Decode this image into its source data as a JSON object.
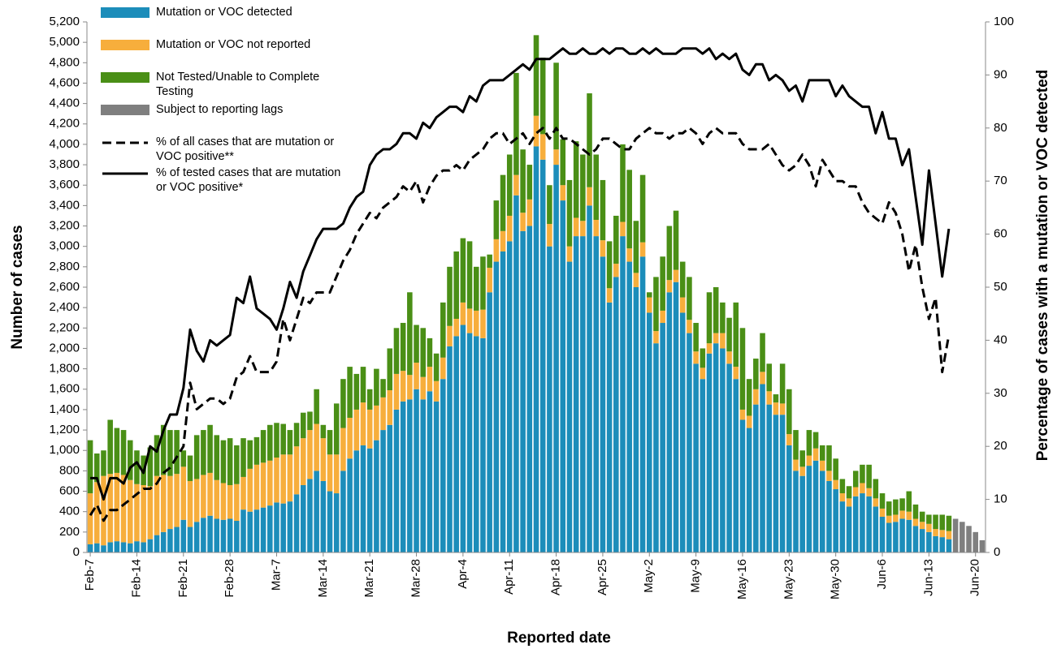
{
  "chart_data": {
    "type": "bar",
    "x_label": "Reported date",
    "y_label": "Number of cases",
    "y2_label": "Percentage of cases with a mutation or VOC detected",
    "stacked": true,
    "legend": "upper left",
    "categories": [
      "Feb-7",
      null,
      null,
      null,
      null,
      null,
      null,
      "Feb-14",
      null,
      null,
      null,
      null,
      null,
      null,
      "Feb-21",
      null,
      null,
      null,
      null,
      null,
      null,
      "Feb-28",
      null,
      null,
      null,
      null,
      null,
      null,
      "Mar-7",
      null,
      null,
      null,
      null,
      null,
      null,
      "Mar-14",
      null,
      null,
      null,
      null,
      null,
      null,
      "Mar-21",
      null,
      null,
      null,
      null,
      null,
      null,
      "Mar-28",
      null,
      null,
      null,
      null,
      null,
      null,
      "Apr-4",
      null,
      null,
      null,
      null,
      null,
      null,
      "Apr-11",
      null,
      null,
      null,
      null,
      null,
      null,
      "Apr-18",
      null,
      null,
      null,
      null,
      null,
      null,
      "Apr-25",
      null,
      null,
      null,
      null,
      null,
      null,
      "May-2",
      null,
      null,
      null,
      null,
      null,
      null,
      "May-9",
      null,
      null,
      null,
      null,
      null,
      null,
      "May-16",
      null,
      null,
      null,
      null,
      null,
      null,
      "May-23",
      null,
      null,
      null,
      null,
      null,
      null,
      "May-30",
      null,
      null,
      null,
      null,
      null,
      null,
      "Jun-6",
      null,
      null,
      null,
      null,
      null,
      null,
      "Jun-13",
      null,
      null,
      null,
      null,
      null,
      null,
      "Jun-20",
      null
    ],
    "series": [
      {
        "name": "Mutation or VOC detected",
        "type": "bar",
        "color": "#1c8dba",
        "values": [
          80,
          90,
          70,
          100,
          110,
          100,
          90,
          110,
          100,
          130,
          170,
          200,
          230,
          250,
          320,
          250,
          300,
          340,
          360,
          330,
          320,
          330,
          310,
          420,
          400,
          420,
          440,
          460,
          490,
          480,
          500,
          570,
          660,
          720,
          800,
          700,
          600,
          580,
          800,
          920,
          1000,
          1050,
          1020,
          1100,
          1200,
          1250,
          1400,
          1480,
          1500,
          1600,
          1500,
          1580,
          1480,
          1700,
          2020,
          2120,
          2230,
          2150,
          2120,
          2100,
          2550,
          2850,
          2950,
          3050,
          3500,
          3150,
          3200,
          3980,
          3850,
          3000,
          3800,
          3450,
          2850,
          3100,
          3100,
          3400,
          3100,
          2900,
          2450,
          2700,
          3100,
          2850,
          2600,
          2900,
          2350,
          2050,
          2250,
          2550,
          2650,
          2350,
          2150,
          1850,
          1700,
          1950,
          2050,
          2000,
          1850,
          1700,
          1300,
          1220,
          1450,
          1650,
          1450,
          1350,
          1350,
          1050,
          800,
          750,
          850,
          900,
          800,
          700,
          620,
          500,
          450,
          550,
          580,
          550,
          450,
          350,
          290,
          300,
          330,
          320,
          260,
          230,
          200,
          160,
          150,
          130,
          null,
          null,
          null,
          null,
          null
        ]
      },
      {
        "name": "Mutation or VOC not reported",
        "type": "bar",
        "color": "#f7ae3c",
        "values": [
          500,
          600,
          680,
          670,
          670,
          660,
          620,
          560,
          560,
          520,
          580,
          560,
          520,
          520,
          520,
          450,
          420,
          420,
          420,
          380,
          360,
          330,
          360,
          320,
          420,
          440,
          440,
          440,
          440,
          480,
          460,
          470,
          460,
          480,
          460,
          420,
          360,
          380,
          420,
          400,
          400,
          420,
          380,
          340,
          320,
          340,
          350,
          300,
          240,
          260,
          220,
          240,
          200,
          210,
          200,
          170,
          220,
          240,
          250,
          280,
          240,
          220,
          200,
          250,
          200,
          180,
          260,
          300,
          250,
          220,
          150,
          150,
          150,
          180,
          150,
          180,
          160,
          160,
          140,
          130,
          140,
          130,
          140,
          140,
          150,
          120,
          120,
          120,
          120,
          150,
          130,
          120,
          110,
          100,
          100,
          150,
          120,
          120,
          100,
          120,
          150,
          120,
          130,
          120,
          110,
          110,
          110,
          90,
          100,
          120,
          100,
          100,
          90,
          80,
          80,
          90,
          100,
          80,
          80,
          80,
          70,
          70,
          80,
          80,
          70,
          70,
          80,
          70,
          70,
          80,
          null,
          null,
          null,
          null,
          null
        ]
      },
      {
        "name": "Not Tested/Unable to Complete Testing",
        "type": "bar",
        "color": "#4a8f16",
        "values": [
          520,
          280,
          250,
          530,
          440,
          440,
          390,
          330,
          290,
          380,
          400,
          490,
          450,
          430,
          160,
          250,
          430,
          440,
          470,
          440,
          420,
          460,
          380,
          380,
          280,
          270,
          320,
          350,
          340,
          300,
          240,
          230,
          250,
          180,
          340,
          130,
          240,
          500,
          480,
          500,
          350,
          350,
          200,
          360,
          180,
          410,
          450,
          470,
          810,
          370,
          480,
          280,
          270,
          540,
          580,
          660,
          630,
          660,
          430,
          520,
          130,
          380,
          550,
          600,
          1000,
          620,
          340,
          790,
          750,
          380,
          850,
          450,
          650,
          750,
          650,
          920,
          640,
          590,
          460,
          470,
          760,
          770,
          510,
          660,
          50,
          530,
          530,
          530,
          580,
          350,
          420,
          280,
          190,
          500,
          450,
          300,
          330,
          630,
          800,
          360,
          300,
          380,
          270,
          80,
          390,
          440,
          290,
          160,
          250,
          160,
          150,
          250,
          210,
          140,
          120,
          160,
          180,
          230,
          190,
          150,
          140,
          150,
          120,
          200,
          140,
          100,
          90,
          140,
          150,
          150,
          null,
          null,
          null,
          null,
          null
        ]
      },
      {
        "name": "Subject to reporting lags",
        "type": "bar",
        "color": "#7f7f7f",
        "values": [
          null,
          null,
          null,
          null,
          null,
          null,
          null,
          null,
          null,
          null,
          null,
          null,
          null,
          null,
          null,
          null,
          null,
          null,
          null,
          null,
          null,
          null,
          null,
          null,
          null,
          null,
          null,
          null,
          null,
          null,
          null,
          null,
          null,
          null,
          null,
          null,
          null,
          null,
          null,
          null,
          null,
          null,
          null,
          null,
          null,
          null,
          null,
          null,
          null,
          null,
          null,
          null,
          null,
          null,
          null,
          null,
          null,
          null,
          null,
          null,
          null,
          null,
          null,
          null,
          null,
          null,
          null,
          null,
          null,
          null,
          null,
          null,
          null,
          null,
          null,
          null,
          null,
          null,
          null,
          null,
          null,
          null,
          null,
          null,
          null,
          null,
          null,
          null,
          null,
          null,
          null,
          null,
          null,
          null,
          null,
          null,
          null,
          null,
          null,
          null,
          null,
          null,
          null,
          null,
          null,
          null,
          null,
          null,
          null,
          null,
          null,
          null,
          null,
          null,
          null,
          null,
          null,
          null,
          null,
          null,
          null,
          null,
          null,
          null,
          null,
          null,
          null,
          null,
          null,
          null,
          330,
          300,
          260,
          200,
          120
        ]
      },
      {
        "name": "% of all cases that are mutation or VOC positive**",
        "type": "line",
        "axis": "y2",
        "style": "dashed",
        "color": "#000000",
        "values": [
          7,
          9,
          6,
          8,
          8,
          9,
          10,
          11,
          12,
          12,
          13,
          15,
          16,
          18,
          20,
          32,
          27,
          28,
          29,
          29,
          28,
          29,
          33,
          34,
          37,
          34,
          34,
          34,
          36,
          44,
          40,
          44,
          48,
          47,
          49,
          49,
          49,
          52,
          55,
          57,
          60,
          62,
          64,
          63,
          65,
          66,
          67,
          69,
          68,
          70,
          66,
          69,
          71,
          72,
          72,
          73,
          72,
          74,
          75,
          76,
          78,
          79,
          79,
          77,
          78,
          79,
          77,
          79,
          80,
          78,
          80,
          78,
          78,
          77,
          76,
          75,
          76,
          78,
          78,
          77,
          76,
          76,
          78,
          79,
          80,
          79,
          79,
          78,
          79,
          79,
          80,
          79,
          77,
          79,
          80,
          79,
          79,
          79,
          77,
          76,
          76,
          76,
          77,
          75,
          73,
          72,
          73,
          75,
          73,
          69,
          74,
          72,
          70,
          70,
          69,
          69,
          66,
          64,
          63,
          62,
          66,
          64,
          60,
          53,
          58,
          50,
          44,
          48,
          34,
          41,
          null,
          null,
          null,
          null,
          null
        ]
      },
      {
        "name": "% of tested cases that are mutation or VOC positive*",
        "type": "line",
        "axis": "y2",
        "style": "solid",
        "color": "#000000",
        "values": [
          14,
          14,
          10,
          14,
          14,
          13,
          16,
          17,
          15,
          20,
          19,
          23,
          26,
          26,
          31,
          42,
          38,
          36,
          40,
          39,
          40,
          41,
          48,
          47,
          52,
          46,
          45,
          44,
          42,
          46,
          51,
          48,
          53,
          56,
          59,
          61,
          61,
          61,
          62,
          65,
          67,
          68,
          73,
          75,
          76,
          76,
          77,
          79,
          79,
          78,
          81,
          80,
          82,
          83,
          84,
          84,
          83,
          86,
          85,
          88,
          89,
          89,
          89,
          90,
          91,
          92,
          91,
          93,
          93,
          93,
          94,
          95,
          94,
          94,
          95,
          94,
          94,
          95,
          94,
          95,
          95,
          94,
          94,
          95,
          94,
          95,
          94,
          94,
          94,
          95,
          95,
          95,
          94,
          95,
          93,
          94,
          93,
          94,
          91,
          90,
          92,
          92,
          89,
          90,
          89,
          87,
          88,
          85,
          89,
          89,
          89,
          89,
          86,
          88,
          86,
          85,
          84,
          84,
          79,
          83,
          78,
          78,
          73,
          76,
          67,
          58,
          72,
          62,
          52,
          61,
          null,
          null,
          null,
          null,
          null
        ]
      }
    ],
    "ylim": [
      0,
      5200
    ],
    "yticks": [
      0,
      200,
      400,
      600,
      800,
      {
        "value": 1000,
        "label": "1,000"
      },
      {
        "value": 1200,
        "label": "1,200"
      },
      {
        "value": 1400,
        "label": "1,400"
      },
      {
        "value": 1600,
        "label": "1,600"
      },
      {
        "value": 1800,
        "label": "1,800"
      },
      {
        "value": 2000,
        "label": "2,000"
      },
      {
        "value": 2200,
        "label": "2,200"
      },
      {
        "value": 2400,
        "label": "2,400"
      },
      {
        "value": 2600,
        "label": "2,600"
      },
      {
        "value": 2800,
        "label": "2,800"
      },
      {
        "value": 3000,
        "label": "3,000"
      },
      {
        "value": 3200,
        "label": "3,200"
      },
      {
        "value": 3400,
        "label": "3,400"
      },
      {
        "value": 3600,
        "label": "3,600"
      },
      {
        "value": 3800,
        "label": "3,800"
      },
      {
        "value": 4000,
        "label": "4,000"
      },
      {
        "value": 4200,
        "label": "4,200"
      },
      {
        "value": 4400,
        "label": "4,400"
      },
      {
        "value": 4600,
        "label": "4,600"
      },
      {
        "value": 4800,
        "label": "4,800"
      },
      {
        "value": 5000,
        "label": "5,000"
      },
      {
        "value": 5200,
        "label": "5,200"
      }
    ],
    "y2lim": [
      0,
      100
    ],
    "y2ticks": [
      0,
      10,
      20,
      30,
      40,
      50,
      60,
      70,
      80,
      90,
      100
    ]
  }
}
